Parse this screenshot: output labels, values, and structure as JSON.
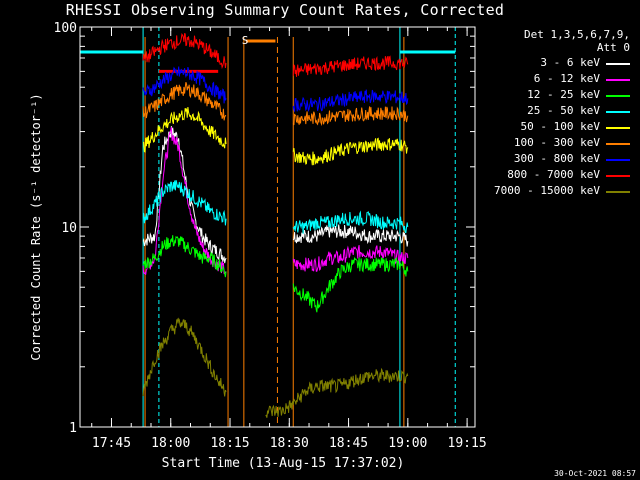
{
  "chart_data": {
    "type": "line",
    "title": "RHESSI Observing Summary Count Rates, Corrected",
    "xlabel": "Start Time (13-Aug-15 17:37:02)",
    "ylabel": "Corrected Count Rate (s⁻¹ detector⁻¹)",
    "y_scale": "log",
    "ylim": [
      1,
      100
    ],
    "xlim": [
      "17:37:02",
      "19:17:00"
    ],
    "x_ticks": [
      "17:45",
      "18:00",
      "18:15",
      "18:30",
      "18:45",
      "19:00",
      "19:15"
    ],
    "y_ticks": [
      "1",
      "10",
      "100"
    ],
    "grid": false,
    "legend_position": "right",
    "legend_header": [
      "Det 1,3,5,6,7,9,",
      "Att 0"
    ],
    "series": [
      {
        "name": "3 - 6 keV",
        "color": "#ffffff",
        "x": [
          "17:53",
          "17:56",
          "17:58",
          "18:00",
          "18:02",
          "18:04",
          "18:06",
          "18:08",
          "18:10",
          "18:12",
          "18:14",
          "18:31",
          "18:34",
          "18:37",
          "18:40",
          "18:43",
          "18:46",
          "18:50",
          "18:54",
          "18:58",
          "19:00"
        ],
        "values": [
          8.5,
          9,
          25,
          30,
          28,
          16,
          11,
          9,
          8,
          7.5,
          7,
          9,
          9,
          9,
          9.5,
          9.5,
          9.5,
          9,
          9,
          9,
          8.5
        ]
      },
      {
        "name": "6 - 12 keV",
        "color": "#ff00ff",
        "x": [
          "17:53",
          "17:56",
          "17:58",
          "18:00",
          "18:02",
          "18:04",
          "18:06",
          "18:08",
          "18:10",
          "18:12",
          "18:14",
          "18:31",
          "18:34",
          "18:37",
          "18:40",
          "18:43",
          "18:46",
          "18:50",
          "18:54",
          "18:58",
          "19:00"
        ],
        "values": [
          6,
          7,
          18,
          30,
          25,
          15,
          10,
          8,
          7,
          6.5,
          6,
          6.5,
          6.5,
          6.5,
          7,
          7,
          7.5,
          7.5,
          7.5,
          7,
          7
        ]
      },
      {
        "name": "12 - 25 keV",
        "color": "#00ff00",
        "x": [
          "17:53",
          "17:56",
          "17:58",
          "18:00",
          "18:02",
          "18:04",
          "18:06",
          "18:08",
          "18:10",
          "18:12",
          "18:14",
          "18:31",
          "18:34",
          "18:37",
          "18:40",
          "18:43",
          "18:46",
          "18:50",
          "18:54",
          "18:58",
          "19:00"
        ],
        "values": [
          6.5,
          7,
          8,
          8.5,
          8.5,
          8,
          7.5,
          7,
          7,
          6.5,
          6,
          5,
          4.5,
          4,
          5,
          6,
          6.5,
          6.5,
          6.5,
          6.5,
          6
        ]
      },
      {
        "name": "25 - 50 keV",
        "color": "#00ffff",
        "x": [
          "17:53",
          "17:56",
          "17:58",
          "18:00",
          "18:02",
          "18:04",
          "18:06",
          "18:08",
          "18:10",
          "18:12",
          "18:14",
          "18:31",
          "18:34",
          "18:37",
          "18:40",
          "18:43",
          "18:46",
          "18:50",
          "18:54",
          "18:58",
          "19:00"
        ],
        "values": [
          11,
          13,
          15,
          16,
          16,
          15,
          14,
          13,
          12,
          11.5,
          11,
          10,
          10,
          10.5,
          10.5,
          11,
          11,
          11,
          10.5,
          10.5,
          10
        ]
      },
      {
        "name": "50 - 100 keV",
        "color": "#ffff00",
        "x": [
          "17:53",
          "17:56",
          "17:58",
          "18:00",
          "18:02",
          "18:04",
          "18:06",
          "18:08",
          "18:10",
          "18:12",
          "18:14",
          "18:31",
          "18:34",
          "18:37",
          "18:40",
          "18:43",
          "18:46",
          "18:50",
          "18:54",
          "18:58",
          "19:00"
        ],
        "values": [
          25,
          29,
          32,
          34,
          36,
          37,
          36,
          33,
          30,
          28,
          26,
          23,
          22,
          22,
          23,
          24,
          25,
          25.5,
          26,
          26,
          25
        ]
      },
      {
        "name": "100 - 300 keV",
        "color": "#ff7f00",
        "x": [
          "17:53",
          "17:56",
          "17:58",
          "18:00",
          "18:02",
          "18:04",
          "18:06",
          "18:08",
          "18:10",
          "18:12",
          "18:14",
          "18:31",
          "18:34",
          "18:37",
          "18:40",
          "18:43",
          "18:46",
          "18:50",
          "18:54",
          "18:58",
          "19:00"
        ],
        "values": [
          37,
          40,
          43,
          46,
          48,
          49,
          48,
          45,
          42,
          39,
          36,
          35,
          35,
          35,
          35.5,
          36,
          36.5,
          37,
          37,
          37,
          36
        ]
      },
      {
        "name": "300 - 800 keV",
        "color": "#0000ff",
        "x": [
          "17:53",
          "17:56",
          "17:58",
          "18:00",
          "18:02",
          "18:04",
          "18:06",
          "18:08",
          "18:10",
          "18:12",
          "18:14",
          "18:31",
          "18:34",
          "18:37",
          "18:40",
          "18:43",
          "18:46",
          "18:50",
          "18:54",
          "18:58",
          "19:00"
        ],
        "values": [
          46,
          50,
          54,
          57,
          59,
          59,
          57,
          54,
          50,
          47,
          44,
          41,
          41,
          41,
          42,
          43,
          44,
          45,
          45,
          44.5,
          44
        ]
      },
      {
        "name": "800 - 7000 keV",
        "color": "#ff0000",
        "x": [
          "17:53",
          "17:56",
          "17:58",
          "18:00",
          "18:02",
          "18:04",
          "18:06",
          "18:08",
          "18:10",
          "18:12",
          "18:14",
          "18:31",
          "18:34",
          "18:37",
          "18:40",
          "18:43",
          "18:46",
          "18:50",
          "18:54",
          "18:58",
          "19:00"
        ],
        "values": [
          68,
          75,
          80,
          83,
          85,
          86,
          84,
          80,
          75,
          70,
          66,
          60,
          61,
          62,
          63,
          64,
          65,
          66,
          66,
          66,
          65
        ]
      },
      {
        "name": "7000 - 15000 keV",
        "color": "#808000",
        "x": [
          "17:53",
          "17:56",
          "17:58",
          "18:00",
          "18:02",
          "18:04",
          "18:06",
          "18:08",
          "18:10",
          "18:12",
          "18:14",
          "18:24",
          "18:28",
          "18:31",
          "18:34",
          "18:37",
          "18:40",
          "18:43",
          "18:46",
          "18:50",
          "18:54",
          "18:58",
          "19:00"
        ],
        "values": [
          1.5,
          2.2,
          2.6,
          3,
          3.3,
          3.2,
          2.8,
          2.4,
          2,
          1.7,
          1.5,
          1.2,
          1.2,
          1.3,
          1.5,
          1.6,
          1.6,
          1.6,
          1.7,
          1.8,
          1.8,
          1.8,
          1.8
        ]
      }
    ],
    "state_bars": [
      {
        "color": "#00ffff",
        "level": 75,
        "from": "17:37:02",
        "to": "17:53:00"
      },
      {
        "color": "#ff0000",
        "level": 60,
        "from": "17:57:00",
        "to": "18:12:00"
      },
      {
        "color": "#00ffff",
        "level": 75,
        "from": "18:58:00",
        "to": "19:12:00"
      }
    ],
    "saa_label": "S"
  },
  "footer": {
    "timestamp": "30-Oct-2021 08:57"
  }
}
